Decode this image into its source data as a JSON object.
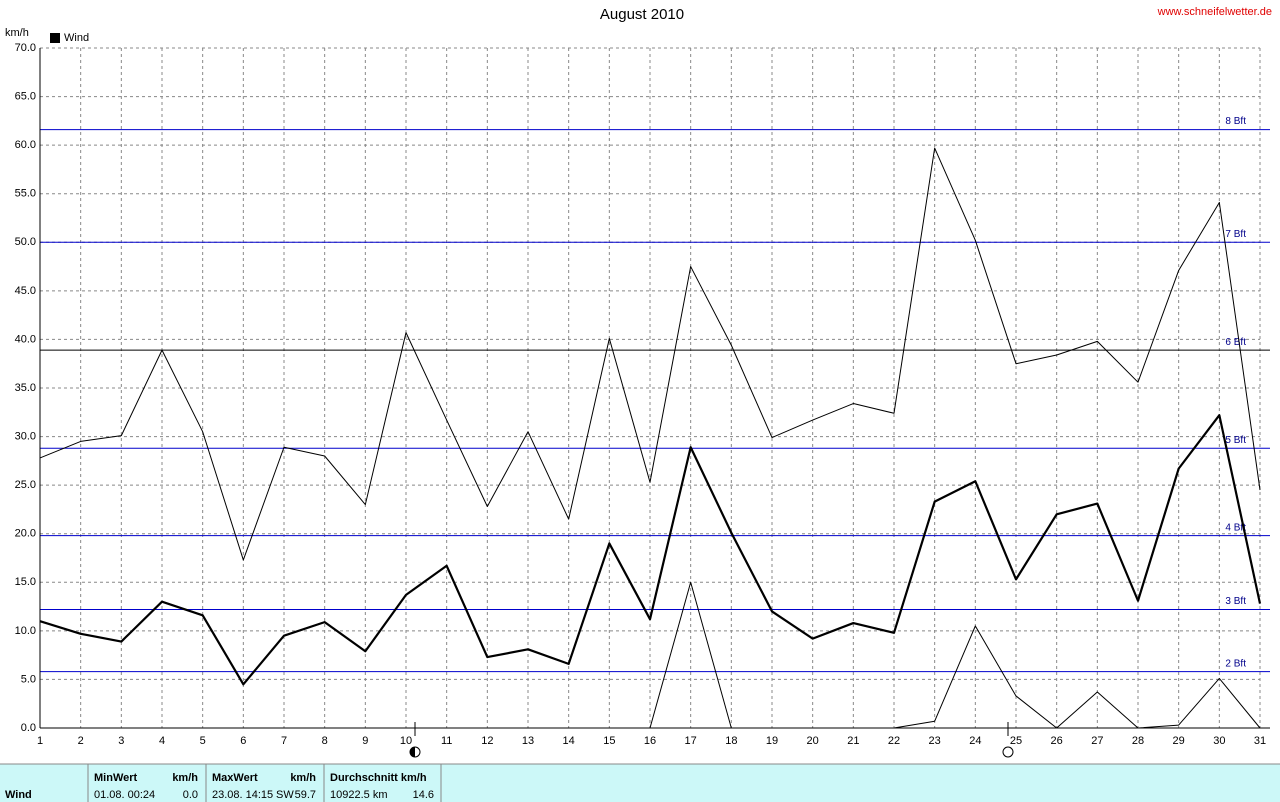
{
  "site": "www.schneifelwetter.de",
  "chart_data": {
    "type": "line",
    "title": "August 2010",
    "y_label": "km/h",
    "x": [
      1,
      2,
      3,
      4,
      5,
      6,
      7,
      8,
      9,
      10,
      11,
      12,
      13,
      14,
      15,
      16,
      17,
      18,
      19,
      20,
      21,
      22,
      23,
      24,
      25,
      26,
      27,
      28,
      29,
      30,
      31
    ],
    "xlim": [
      1,
      31
    ],
    "xticks": [
      1,
      2,
      3,
      4,
      5,
      6,
      7,
      8,
      9,
      10,
      11,
      12,
      13,
      14,
      15,
      16,
      17,
      18,
      19,
      20,
      21,
      22,
      23,
      24,
      25,
      26,
      27,
      28,
      29,
      30,
      31
    ],
    "ylim": [
      0,
      70
    ],
    "yticks": [
      {
        "value": 0,
        "label": "0.0"
      },
      {
        "value": 5,
        "label": "5.0"
      },
      {
        "value": 10,
        "label": "10.0"
      },
      {
        "value": 15,
        "label": "15.0"
      },
      {
        "value": 20,
        "label": "20.0"
      },
      {
        "value": 25,
        "label": "25.0"
      },
      {
        "value": 30,
        "label": "30.0"
      },
      {
        "value": 35,
        "label": "35.0"
      },
      {
        "value": 40,
        "label": "40.0"
      },
      {
        "value": 45,
        "label": "45.0"
      },
      {
        "value": 50,
        "label": "50.0"
      },
      {
        "value": 55,
        "label": "55.0"
      },
      {
        "value": 60,
        "label": "60.0"
      },
      {
        "value": 65,
        "label": "65.0"
      },
      {
        "value": 70,
        "label": "70.0"
      }
    ],
    "grid": true,
    "legend": {
      "name": "Wind",
      "color": "#000000",
      "position": "top-left"
    },
    "series": [
      {
        "color": "#000000",
        "values": [
          27.8,
          29.5,
          30.1,
          38.9,
          30.5,
          17.3,
          28.9,
          28.0,
          23.0,
          40.7,
          31.7,
          22.8,
          30.5,
          21.5,
          40.1,
          25.3,
          47.5,
          39.4,
          29.9,
          31.7,
          33.4,
          32.4,
          59.7,
          50.2,
          37.5,
          38.4,
          39.8,
          35.6,
          47.1,
          54.1,
          24.5
        ]
      },
      {
        "color": "#000000",
        "values": [
          11.0,
          9.7,
          8.9,
          13.0,
          11.6,
          4.5,
          9.5,
          10.9,
          7.9,
          13.7,
          16.7,
          7.3,
          8.1,
          6.6,
          19.0,
          11.2,
          28.9,
          20.1,
          12.0,
          9.2,
          10.8,
          9.8,
          23.3,
          25.4,
          15.3,
          22.0,
          23.1,
          13.1,
          26.7,
          32.2,
          12.8
        ]
      },
      {
        "color": "#000000",
        "values": [
          null,
          null,
          null,
          null,
          null,
          null,
          null,
          null,
          null,
          null,
          null,
          null,
          null,
          null,
          null,
          0,
          15.0,
          0,
          null,
          null,
          null,
          0,
          0.7,
          10.5,
          3.3,
          0,
          3.7,
          0,
          0.3,
          5.1,
          0
        ]
      }
    ],
    "reference_lines": [
      {
        "value": 5.8,
        "label": "2 Bft",
        "color": "#0000cc"
      },
      {
        "value": 12.2,
        "label": "3 Bft",
        "color": "#0000cc"
      },
      {
        "value": 19.8,
        "label": "4 Bft",
        "color": "#0000cc"
      },
      {
        "value": 28.8,
        "label": "5 Bft",
        "color": "#0000cc"
      },
      {
        "value": 38.9,
        "label": "6 Bft",
        "color": "#000000"
      },
      {
        "value": 50.0,
        "label": "7 Bft",
        "color": "#0000cc"
      },
      {
        "value": 61.6,
        "label": "8 Bft",
        "color": "#0000cc"
      }
    ]
  },
  "table": {
    "label": "Wind",
    "columns": [
      {
        "header": "MinWert",
        "unit": "km/h",
        "time": "01.08.  00:24",
        "value": "0.0"
      },
      {
        "header": "MaxWert",
        "unit": "km/h",
        "time": "23.08.  14:15",
        "dir": "SW",
        "value": "59.7"
      },
      {
        "header": "Durchschnitt km/h",
        "time": "10922.5 km",
        "value": "14.6"
      }
    ]
  }
}
